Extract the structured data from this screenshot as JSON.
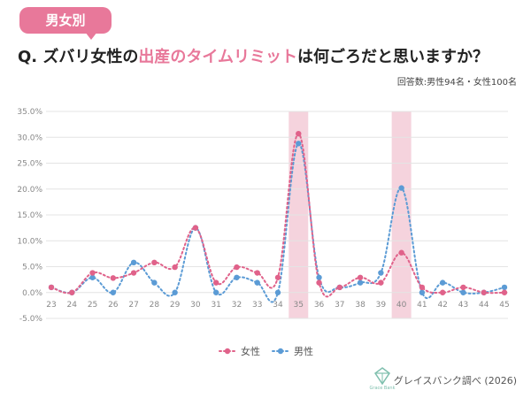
{
  "tag_label": "男女別",
  "question": {
    "prefix": "Q. ズバリ女性の",
    "highlight": "出産のタイムリミット",
    "suffix": "は何ごろだと思いますか？"
  },
  "respondents": "回答数:男性94名・女性100名",
  "footer": "グレイスバンク調べ (2026)",
  "logo_text": "Grace Bank",
  "colors": {
    "female": "#e0628a",
    "male": "#5b9bd5",
    "highlight_band": "#f5d3dd",
    "tag": "#e8789a"
  },
  "chart_data": {
    "type": "line",
    "x": [
      23,
      24,
      25,
      26,
      27,
      28,
      29,
      30,
      31,
      32,
      33,
      34,
      35,
      36,
      37,
      38,
      39,
      40,
      41,
      42,
      43,
      44,
      45
    ],
    "y_ticks": [
      "35.0%",
      "30.0%",
      "25.0%",
      "20.0%",
      "15.0%",
      "10.0%",
      "5.0%",
      "0.0%",
      "-5.0%"
    ],
    "ylim": [
      -5,
      35
    ],
    "highlighted_x": [
      35,
      40
    ],
    "series": [
      {
        "name": "女性",
        "values": [
          1.0,
          0.0,
          3.8,
          2.8,
          3.8,
          5.8,
          4.9,
          12.5,
          1.9,
          4.9,
          3.8,
          2.9,
          30.7,
          1.9,
          1.0,
          2.9,
          1.9,
          7.7,
          1.0,
          0.0,
          1.0,
          0.0,
          0.0
        ]
      },
      {
        "name": "男性",
        "values": [
          1.0,
          0.0,
          2.9,
          0.0,
          5.8,
          1.9,
          0.0,
          12.5,
          0.0,
          2.9,
          1.9,
          0.0,
          28.8,
          2.9,
          1.0,
          1.9,
          3.8,
          20.2,
          0.0,
          1.9,
          0.0,
          0.0,
          1.0
        ]
      }
    ],
    "legend_position": "bottom",
    "grid": true
  }
}
